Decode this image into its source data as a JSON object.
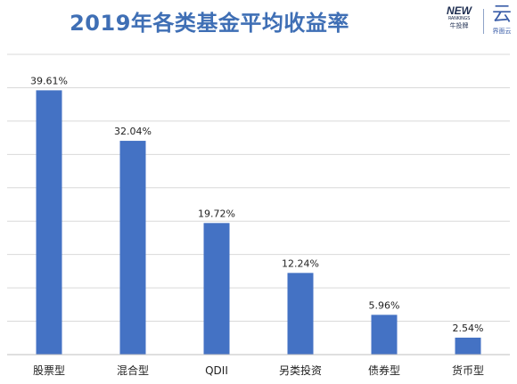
{
  "header": {
    "title": "2019年各类基金平均收益率"
  },
  "logo": {
    "brand_word": "NEW",
    "brand_sub": "RANKINGS",
    "brand_cn": "牛投牌",
    "yun_glyph": "云",
    "yun_cn": "界面云"
  },
  "colors": {
    "bar": "#4472c4",
    "title": "#3f6fb5",
    "grid": "#d9d9d9"
  },
  "chart_data": {
    "type": "bar",
    "title": "2019年各类基金平均收益率",
    "categories": [
      "股票型",
      "混合型",
      "QDII",
      "另类投资",
      "债券型",
      "货币型"
    ],
    "values": [
      39.61,
      32.04,
      19.72,
      12.24,
      5.96,
      2.54
    ],
    "data_labels": [
      "39.61%",
      "32.04%",
      "19.72%",
      "12.24%",
      "5.96%",
      "2.54%"
    ],
    "xlabel": "",
    "ylabel": "",
    "ylim": [
      0,
      45
    ],
    "gridlines": true,
    "y_axis_labels_shown": false,
    "legend": "none"
  }
}
